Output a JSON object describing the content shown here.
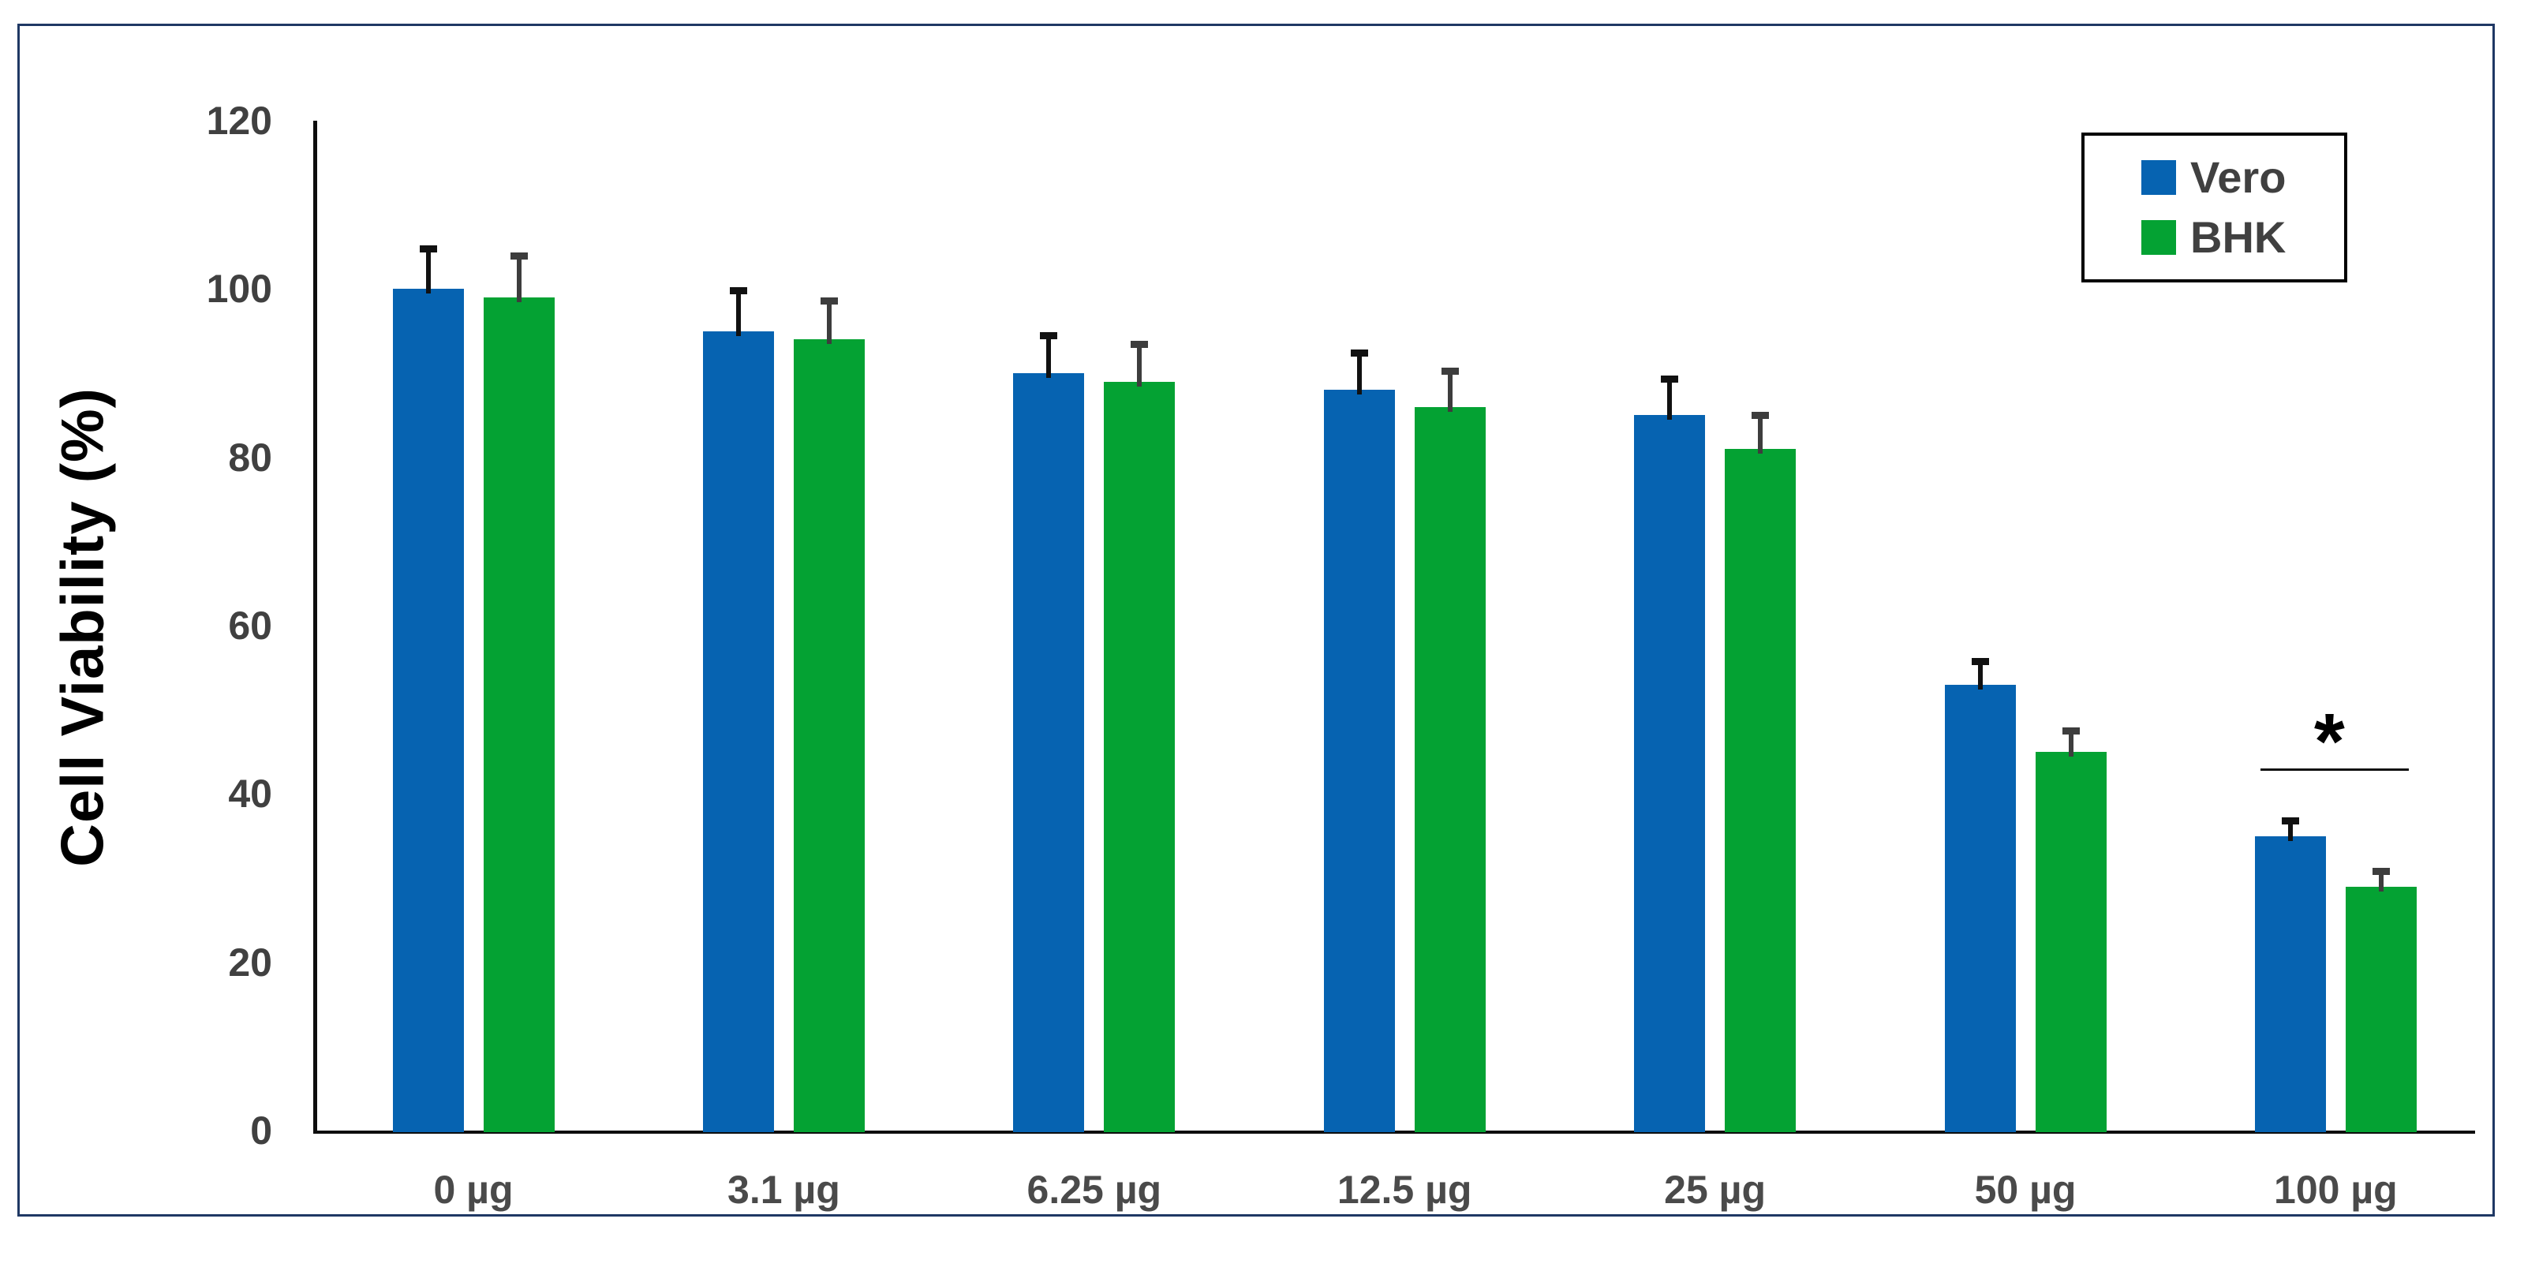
{
  "chart_data": {
    "type": "bar",
    "title": "",
    "xlabel": "",
    "ylabel": "Cell Viability (%)",
    "ylim": [
      0,
      120
    ],
    "yticks": [
      0,
      20,
      40,
      60,
      80,
      100,
      120
    ],
    "grid": false,
    "legend_position": "top-right",
    "categories": [
      "0 µg",
      "3.1 µg",
      "6.25 µg",
      "12.5 µg",
      "25 µg",
      "50 µg",
      "100 µg"
    ],
    "series": [
      {
        "name": "Vero",
        "color": "#0663B1",
        "error_color": "#111111",
        "values": [
          100,
          95,
          90,
          88,
          85,
          53,
          35
        ],
        "errors": [
          5,
          5,
          4.7,
          4.6,
          4.5,
          3,
          2
        ]
      },
      {
        "name": "BHK",
        "color": "#04A233",
        "error_color": "#3d3d3d",
        "values": [
          99,
          94,
          89,
          86,
          81,
          45,
          29
        ],
        "errors": [
          5.2,
          4.8,
          4.7,
          4.5,
          4.2,
          2.7,
          2
        ]
      }
    ],
    "annotations": [
      {
        "symbol": "*",
        "category": "100 µg",
        "line_value": 43
      }
    ]
  },
  "frame": {
    "border_color": "#1F3864"
  }
}
